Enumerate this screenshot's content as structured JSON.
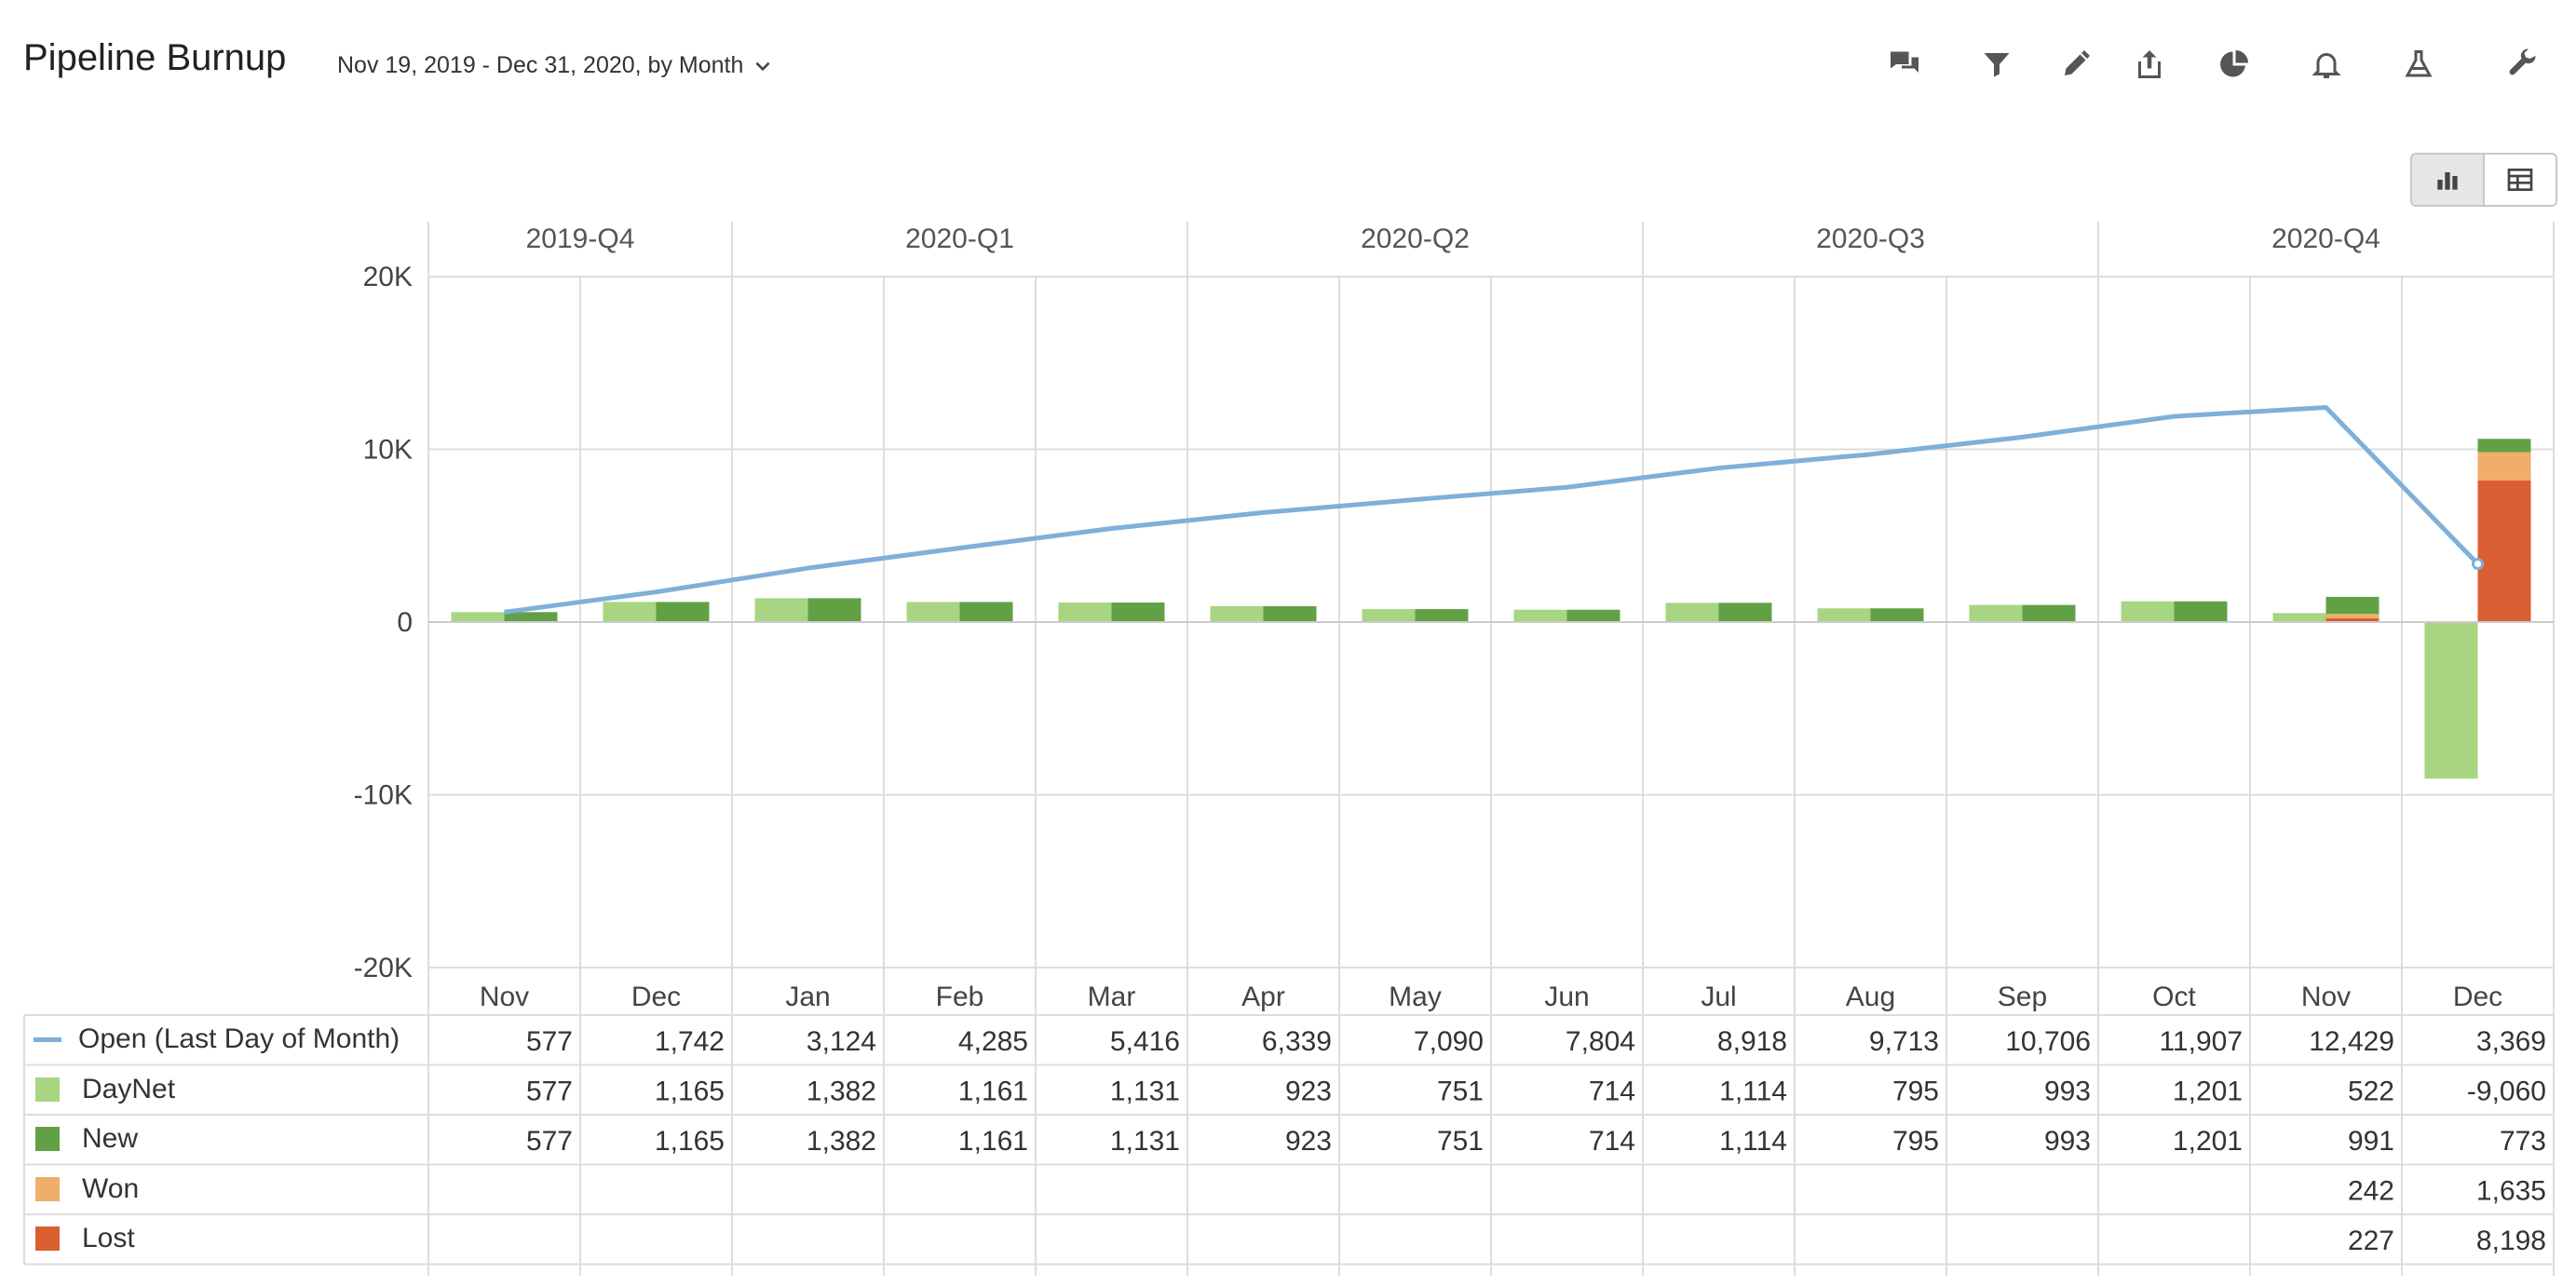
{
  "header": {
    "title": "Pipeline Burnup",
    "date_range": "Nov 19, 2019 - Dec 31, 2020, by Month"
  },
  "toolbar": {
    "icons": [
      "comments-icon",
      "filter-icon",
      "edit-icon",
      "share-icon",
      "pie-chart-icon",
      "bell-icon",
      "flask-icon",
      "wrench-icon"
    ]
  },
  "view_toggle": {
    "selected": "chart",
    "options": [
      "chart-view-icon",
      "table-view-icon"
    ]
  },
  "colors": {
    "open": "#7eb0d9",
    "daynet": "#a8d581",
    "new": "#62a046",
    "won": "#f0ae6a",
    "lost": "#d95f33",
    "grid": "#dddddd"
  },
  "chart_data": {
    "type": "bar",
    "quarters": [
      {
        "label": "2019-Q4",
        "months": 2
      },
      {
        "label": "2020-Q1",
        "months": 3
      },
      {
        "label": "2020-Q2",
        "months": 3
      },
      {
        "label": "2020-Q3",
        "months": 3
      },
      {
        "label": "2020-Q4",
        "months": 3
      }
    ],
    "categories": [
      "Nov",
      "Dec",
      "Jan",
      "Feb",
      "Mar",
      "Apr",
      "May",
      "Jun",
      "Jul",
      "Aug",
      "Sep",
      "Oct",
      "Nov",
      "Dec"
    ],
    "ylim": [
      -20000,
      20000
    ],
    "yticks": [
      {
        "value": 20000,
        "label": "20K"
      },
      {
        "value": 10000,
        "label": "10K"
      },
      {
        "value": 0,
        "label": "0"
      },
      {
        "value": -10000,
        "label": "-10K"
      },
      {
        "value": -20000,
        "label": "-20K"
      }
    ],
    "grid": true,
    "legend": "table-left",
    "series": [
      {
        "key": "open",
        "name": "Open (Last Day of Month)",
        "kind": "line",
        "values": [
          577,
          1742,
          3124,
          4285,
          5416,
          6339,
          7090,
          7804,
          8918,
          9713,
          10706,
          11907,
          12429,
          3369
        ],
        "labels": [
          "577",
          "1,742",
          "3,124",
          "4,285",
          "5,416",
          "6,339",
          "7,090",
          "7,804",
          "8,918",
          "9,713",
          "10,706",
          "11,907",
          "12,429",
          "3,369"
        ]
      },
      {
        "key": "daynet",
        "name": "DayNet",
        "kind": "bar",
        "values": [
          577,
          1165,
          1382,
          1161,
          1131,
          923,
          751,
          714,
          1114,
          795,
          993,
          1201,
          522,
          -9060
        ],
        "labels": [
          "577",
          "1,165",
          "1,382",
          "1,161",
          "1,131",
          "923",
          "751",
          "714",
          "1,114",
          "795",
          "993",
          "1,201",
          "522",
          "-9,060"
        ]
      },
      {
        "key": "new",
        "name": "New",
        "kind": "stack",
        "values": [
          577,
          1165,
          1382,
          1161,
          1131,
          923,
          751,
          714,
          1114,
          795,
          993,
          1201,
          991,
          773
        ],
        "labels": [
          "577",
          "1,165",
          "1,382",
          "1,161",
          "1,131",
          "923",
          "751",
          "714",
          "1,114",
          "795",
          "993",
          "1,201",
          "991",
          "773"
        ]
      },
      {
        "key": "won",
        "name": "Won",
        "kind": "stack",
        "values": [
          null,
          null,
          null,
          null,
          null,
          null,
          null,
          null,
          null,
          null,
          null,
          null,
          242,
          1635
        ],
        "labels": [
          "",
          "",
          "",
          "",
          "",
          "",
          "",
          "",
          "",
          "",
          "",
          "",
          "242",
          "1,635"
        ]
      },
      {
        "key": "lost",
        "name": "Lost",
        "kind": "stack",
        "values": [
          null,
          null,
          null,
          null,
          null,
          null,
          null,
          null,
          null,
          null,
          null,
          null,
          227,
          8198
        ],
        "labels": [
          "",
          "",
          "",
          "",
          "",
          "",
          "",
          "",
          "",
          "",
          "",
          "",
          "227",
          "8,198"
        ]
      }
    ]
  }
}
